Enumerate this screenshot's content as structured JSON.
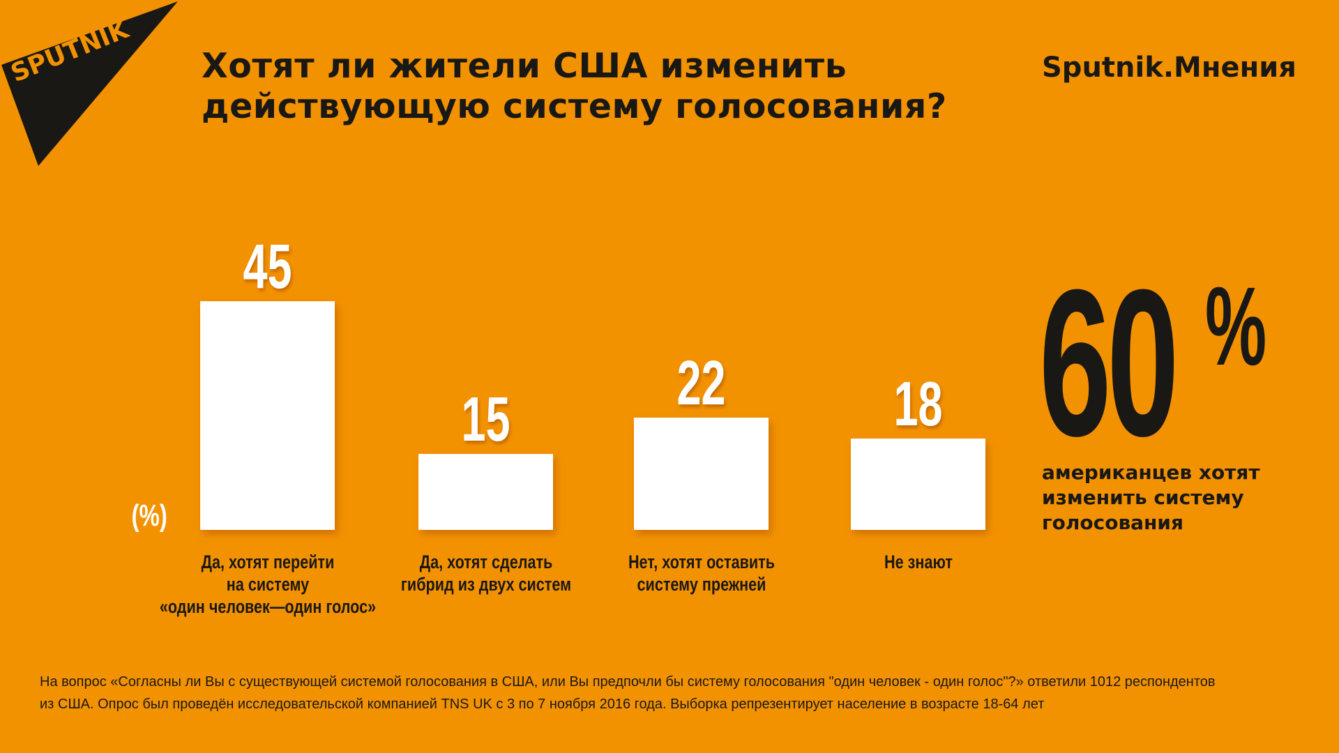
{
  "logo": {
    "text": "SPUTNIK"
  },
  "header": {
    "title_line1": "Хотят ли жители США изменить",
    "title_line2": "действующую систему голосования?",
    "brand": "Sputnik.Мнения"
  },
  "chart_data": {
    "type": "bar",
    "title": "Хотят ли жители США изменить действующую систему голосования?",
    "ylabel": "(%)",
    "categories": [
      [
        "Да, хотят перейти",
        "на систему",
        "«один человек—один голос»"
      ],
      [
        "Да, хотят сделать",
        "гибрид из двух систем"
      ],
      [
        "Нет, хотят оставить",
        "систему прежней"
      ],
      [
        "Не знают"
      ]
    ],
    "values": [
      45,
      15,
      22,
      18
    ],
    "ylim": [
      0,
      45
    ],
    "grid": false
  },
  "highlight": {
    "number": "60",
    "percent_sign": "%",
    "text": "американцев хотят изменить систему голосования"
  },
  "footnote": {
    "line1": "На вопрос «Согласны ли Вы с существующей системой голосования в США, или Вы предпочли бы систему голосования \"один человек - один голос\"?» ответили 1012 респондентов",
    "line2": "из США. Опрос был проведён исследовательской компанией TNS UK с 3 по 7 ноября 2016 года. Выборка репрезентирует население в возрасте 18-64 лет"
  },
  "colors": {
    "background": "#f39200",
    "dark": "#1a1814",
    "bar": "#ffffff"
  }
}
